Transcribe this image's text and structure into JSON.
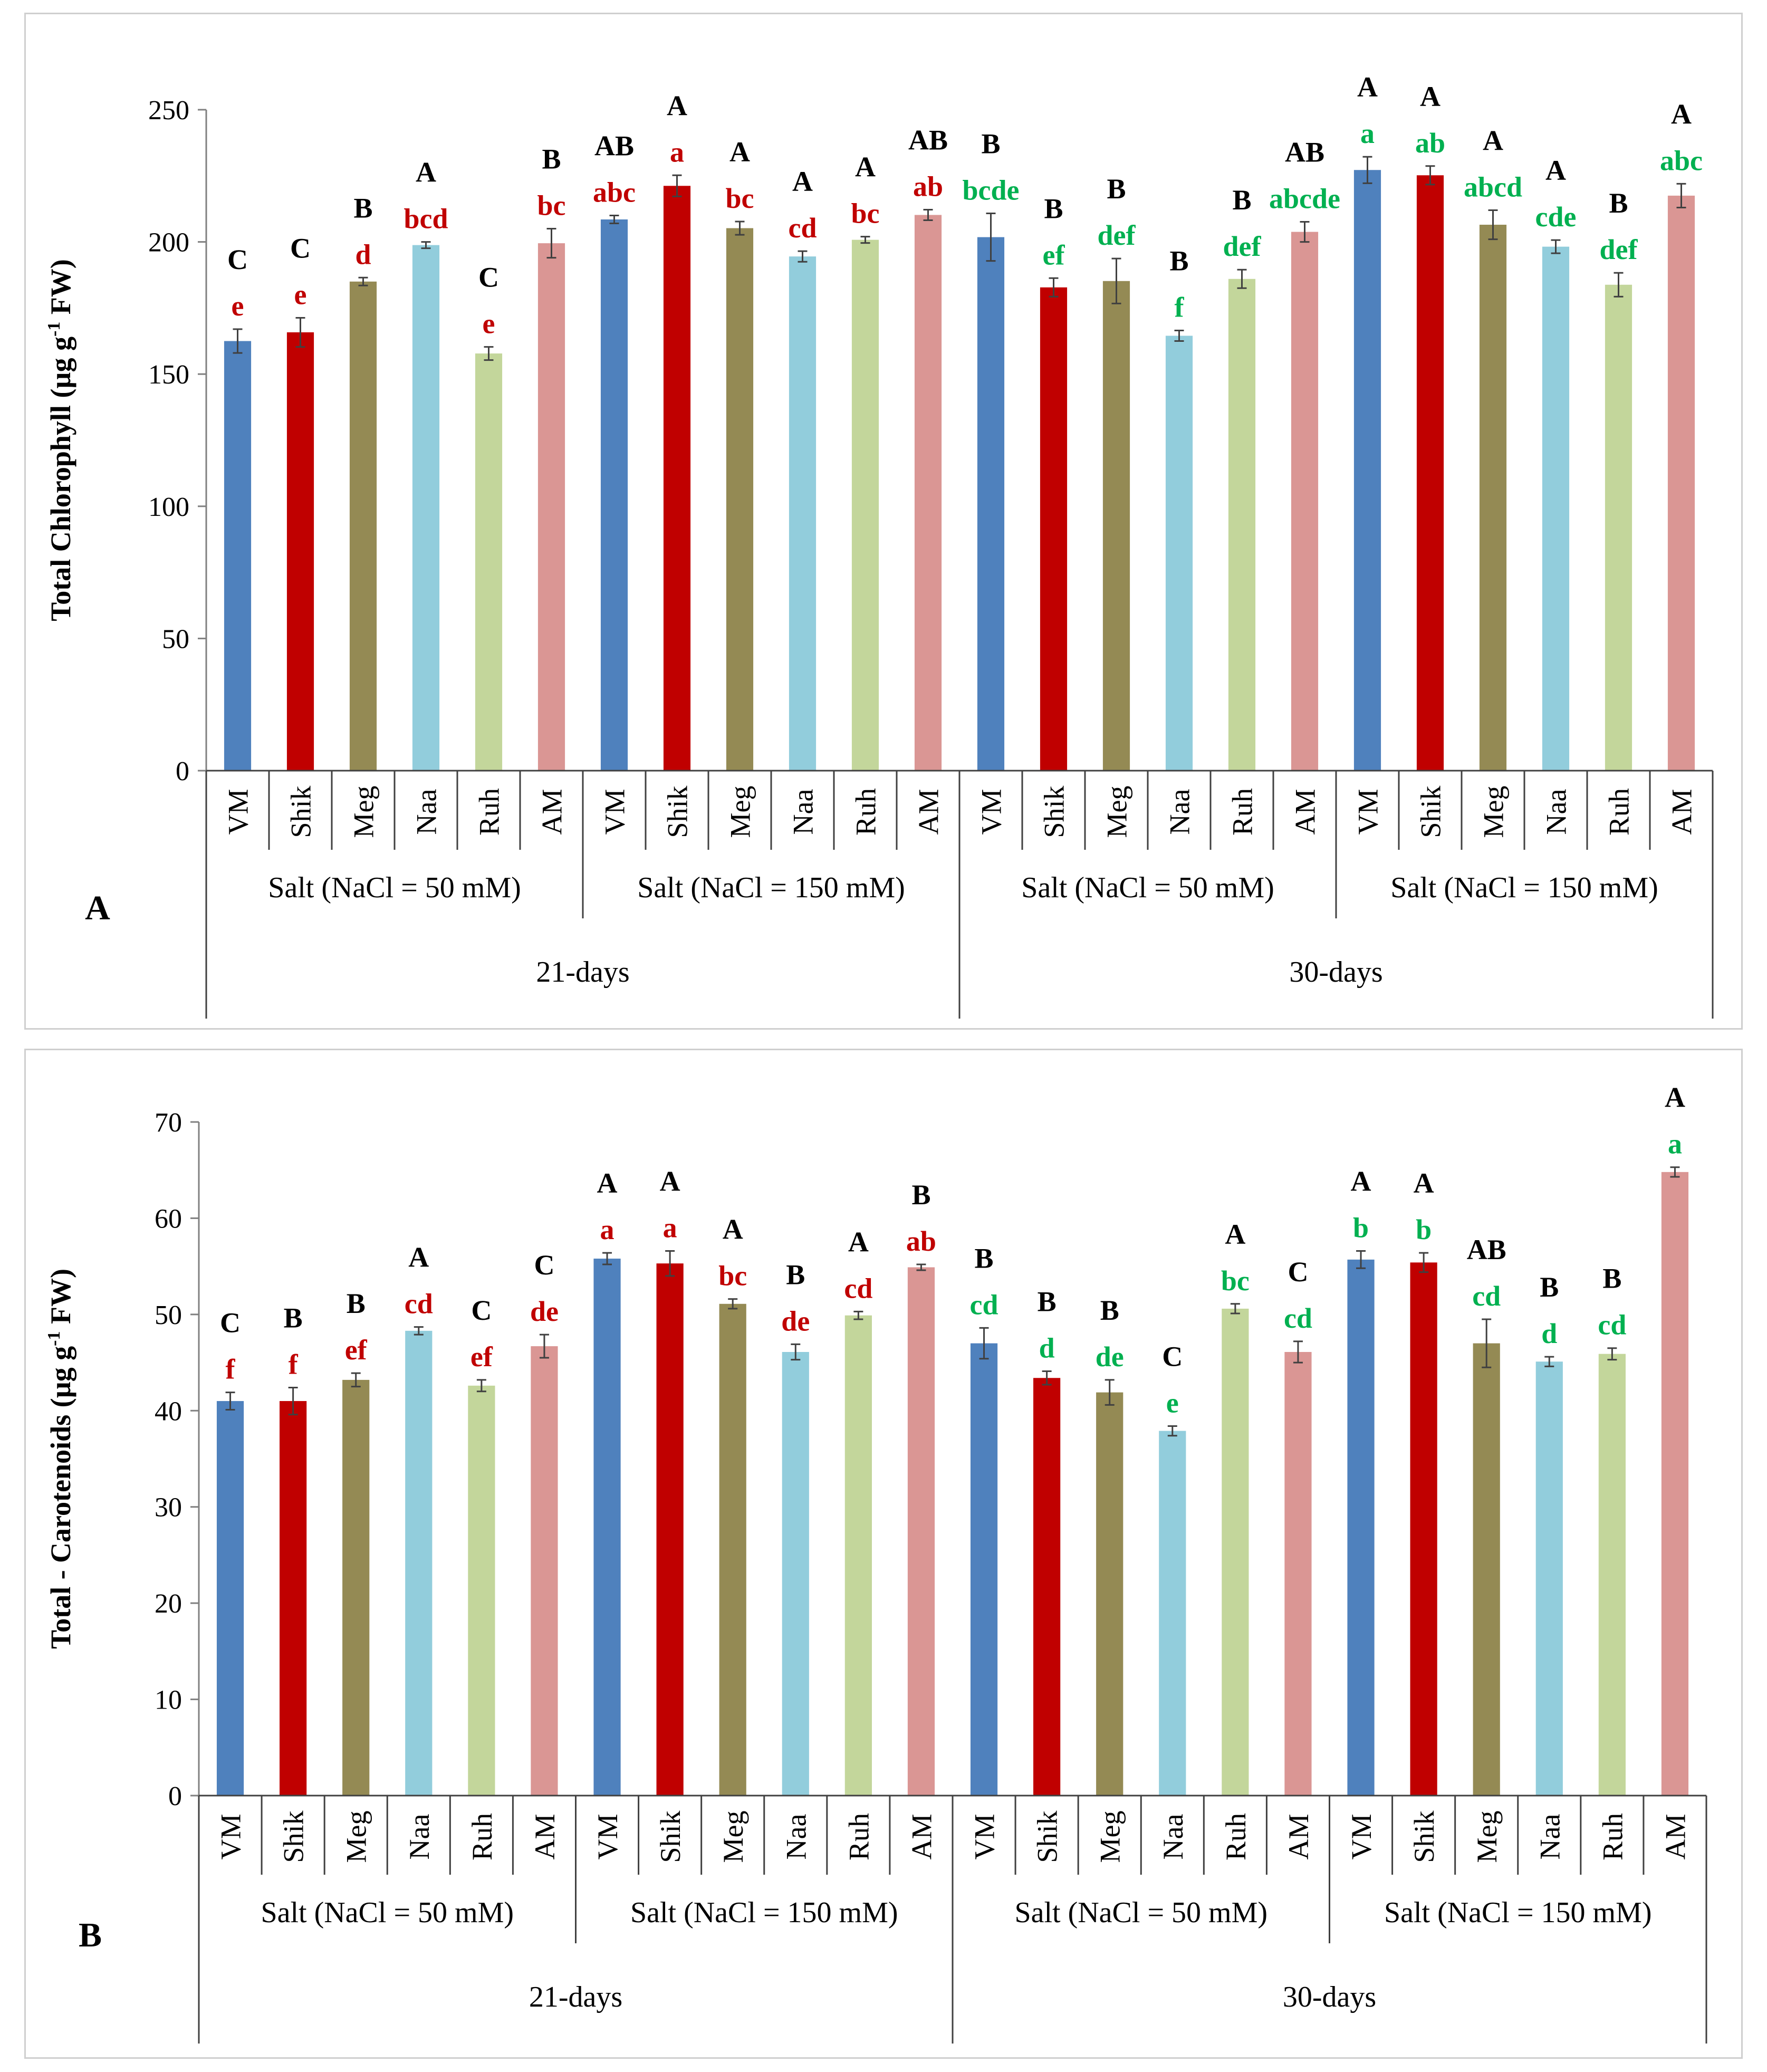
{
  "colors": {
    "VM": "#4f81bd",
    "Shik": "#c00000",
    "Meg": "#948a54",
    "Naa": "#92cddc",
    "Ruh": "#c3d69b",
    "AM": "#da9694",
    "letters_red": "#c00000",
    "letters_green": "#00b050",
    "upper_letters": "#000000"
  },
  "groups": {
    "cultivars": [
      "VM",
      "Shik",
      "Meg",
      "Naa",
      "Ruh",
      "AM"
    ],
    "treatments": [
      "Salt  (NaCl = 50 mM)",
      "Salt  (NaCl = 150 mM)",
      "Salt  (NaCl = 50 mM)",
      "Salt  (NaCl = 150 mM)"
    ],
    "periods": [
      "21-days",
      "30-days"
    ]
  },
  "chart_data": [
    {
      "type": "bar",
      "panel_label": "A",
      "ylabel": "Total Chlorophyll (µg g",
      "ylabel_sup": "-1",
      "ylabel_end": "  FW)",
      "ylim": [
        0,
        250
      ],
      "yticks": [
        0,
        50,
        100,
        150,
        200,
        250
      ],
      "values": [
        162.5,
        165.8,
        185,
        198.8,
        157.8,
        199.5,
        208.5,
        221.2,
        205.2,
        194.5,
        200.8,
        210.2,
        201.8,
        182.8,
        185.2,
        164.5,
        186,
        203.8,
        227.2,
        225.2,
        206.5,
        198.2,
        183.8,
        217.5
      ],
      "errors": [
        4.5,
        5.5,
        1.5,
        1.2,
        2.5,
        5.5,
        1.5,
        4.0,
        2.5,
        2.0,
        1.2,
        2.0,
        9.0,
        3.5,
        8.5,
        2.0,
        3.5,
        3.8,
        5.0,
        3.5,
        5.5,
        2.5,
        4.5,
        4.5
      ],
      "upper_letters": [
        "C",
        "C",
        "B",
        "A",
        "C",
        "B",
        "AB",
        "A",
        "A",
        "A",
        "A",
        "AB",
        "B",
        "B",
        "B",
        "B",
        "B",
        "AB",
        "A",
        "A",
        "A",
        "A",
        "B",
        "A"
      ],
      "lower_letters": [
        "e",
        "e",
        "d",
        "bcd",
        "e",
        "bc",
        "abc",
        "a",
        "bc",
        "cd",
        "bc",
        "ab",
        "bcde",
        "ef",
        "def",
        "f",
        "def",
        "abcde",
        "a",
        "ab",
        "abcd",
        "cde",
        "def",
        "abc"
      ]
    },
    {
      "type": "bar",
      "panel_label": "B",
      "ylabel": "Total - Carotenoids (µg g",
      "ylabel_sup": "-1",
      "ylabel_end": " FW)",
      "ylim": [
        0,
        70
      ],
      "yticks": [
        0,
        10,
        20,
        30,
        40,
        50,
        60,
        70
      ],
      "values": [
        41,
        41,
        43.2,
        48.3,
        42.6,
        46.7,
        55.8,
        55.3,
        51.1,
        46.1,
        49.9,
        54.9,
        47,
        43.4,
        41.9,
        37.9,
        50.6,
        46.1,
        55.7,
        55.4,
        47,
        45.1,
        45.9,
        64.8
      ],
      "errors": [
        0.9,
        1.4,
        0.7,
        0.4,
        0.6,
        1.2,
        0.6,
        1.3,
        0.5,
        0.8,
        0.4,
        0.3,
        1.6,
        0.7,
        1.3,
        0.5,
        0.5,
        1.1,
        0.9,
        1.0,
        2.5,
        0.5,
        0.6,
        0.5
      ],
      "upper_letters": [
        "C",
        "B",
        "B",
        "A",
        "C",
        "C",
        "A",
        "A",
        "A",
        "B",
        "A",
        "B",
        "B",
        "B",
        "B",
        "C",
        "A",
        "C",
        "A",
        "A",
        "AB",
        "B",
        "B",
        "A"
      ],
      "lower_letters": [
        "f",
        "f",
        "ef",
        "cd",
        "ef",
        "de",
        "a",
        "a",
        "bc",
        "de",
        "cd",
        "ab",
        "cd",
        "d",
        "de",
        "e",
        "bc",
        "cd",
        "b",
        "b",
        "cd",
        "d",
        "cd",
        "a"
      ]
    }
  ]
}
